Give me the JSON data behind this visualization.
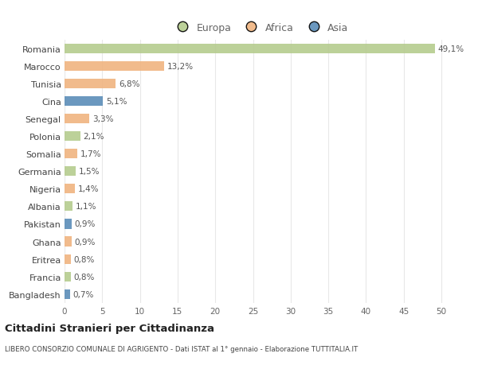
{
  "countries": [
    "Romania",
    "Marocco",
    "Tunisia",
    "Cina",
    "Senegal",
    "Polonia",
    "Somalia",
    "Germania",
    "Nigeria",
    "Albania",
    "Pakistan",
    "Ghana",
    "Eritrea",
    "Francia",
    "Bangladesh"
  ],
  "values": [
    49.1,
    13.2,
    6.8,
    5.1,
    3.3,
    2.1,
    1.7,
    1.5,
    1.4,
    1.1,
    0.9,
    0.9,
    0.8,
    0.8,
    0.7
  ],
  "labels": [
    "49,1%",
    "13,2%",
    "6,8%",
    "5,1%",
    "3,3%",
    "2,1%",
    "1,7%",
    "1,5%",
    "1,4%",
    "1,1%",
    "0,9%",
    "0,9%",
    "0,8%",
    "0,8%",
    "0,7%"
  ],
  "continents": [
    "Europa",
    "Africa",
    "Africa",
    "Asia",
    "Africa",
    "Europa",
    "Africa",
    "Europa",
    "Africa",
    "Europa",
    "Asia",
    "Africa",
    "Africa",
    "Europa",
    "Asia"
  ],
  "colors": {
    "Europa": "#b5cc8e",
    "Africa": "#f0b480",
    "Asia": "#5b8db8"
  },
  "title": "Cittadini Stranieri per Cittadinanza",
  "subtitle": "LIBERO CONSORZIO COMUNALE DI AGRIGENTO - Dati ISTAT al 1° gennaio - Elaborazione TUTTITALIA.IT",
  "xlim": [
    0,
    52
  ],
  "xticks": [
    0,
    5,
    10,
    15,
    20,
    25,
    30,
    35,
    40,
    45,
    50
  ],
  "background_color": "#ffffff",
  "grid_color": "#e8e8e8"
}
